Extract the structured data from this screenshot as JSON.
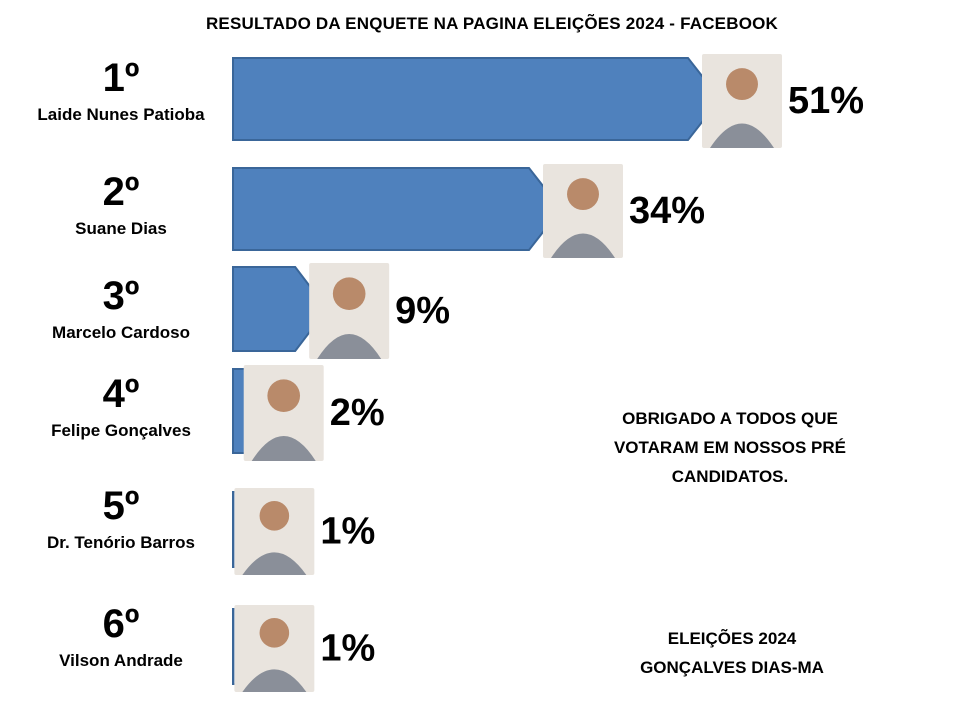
{
  "title": "RESULTADO DA ENQUETE NA PAGINA ELEIÇÕES 2024 - FACEBOOK",
  "chart_data": {
    "type": "bar",
    "orientation": "horizontal",
    "title": "RESULTADO DA ENQUETE NA PAGINA ELEIÇÕES 2024 - FACEBOOK",
    "categories": [
      "Laide Nunes Patioba",
      "Suane Dias",
      "Marcelo Cardoso",
      "Felipe Gonçalves",
      "Dr. Tenório Barros",
      "Vilson Andrade"
    ],
    "ranks": [
      "1º",
      "2º",
      "3º",
      "4º",
      "5º",
      "6º"
    ],
    "values": [
      51,
      34,
      9,
      2,
      1,
      1
    ],
    "value_labels": [
      "51%",
      "34%",
      "9%",
      "2%",
      "1%",
      "1%"
    ],
    "bar_color": "#4f81bd",
    "bar_border": "#3a6699"
  },
  "notes": {
    "thanks": [
      "OBRIGADO A TODOS QUE",
      "VOTARAM EM NOSSOS PRÉ",
      "CANDIDATOS."
    ],
    "footer": [
      "ELEIÇÕES 2024",
      "GONÇALVES DIAS-MA"
    ]
  }
}
